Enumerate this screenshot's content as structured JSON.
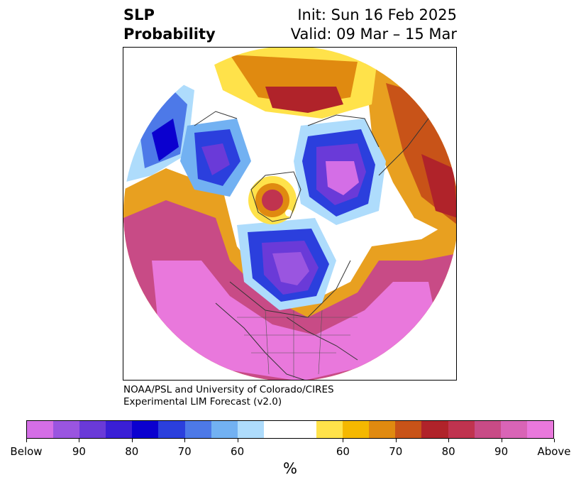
{
  "title": {
    "left_line1": "SLP",
    "left_line2": "Probability",
    "right_line1": "Init: Sun 16 Feb 2025",
    "right_line2": "Valid: 09 Mar – 15 Mar"
  },
  "credit": {
    "line1": "NOAA/PSL and University of Colorado/CIRES",
    "line2": "Experimental LIM Forecast (v2.0)"
  },
  "colorbar": {
    "unit_label": "%",
    "colors": [
      "#d46ee6",
      "#9a55e0",
      "#6a3ad8",
      "#3a1fd6",
      "#0b00cf",
      "#2b3fdd",
      "#4d79e8",
      "#72b1f2",
      "#aedcfc",
      "#ffffff",
      "#ffe24a",
      "#f5b800",
      "#e08a10",
      "#c85318",
      "#b0232a",
      "#c0334f",
      "#c84b86",
      "#d964b6",
      "#e978dc"
    ],
    "tick_labels": [
      "Below",
      "90",
      "80",
      "70",
      "60",
      "60",
      "70",
      "80",
      "90",
      "Above"
    ]
  },
  "map": {
    "projection": "north polar stereographic",
    "features": [
      "north-america",
      "europe",
      "asia",
      "greenland",
      "arctic-ocean"
    ]
  }
}
